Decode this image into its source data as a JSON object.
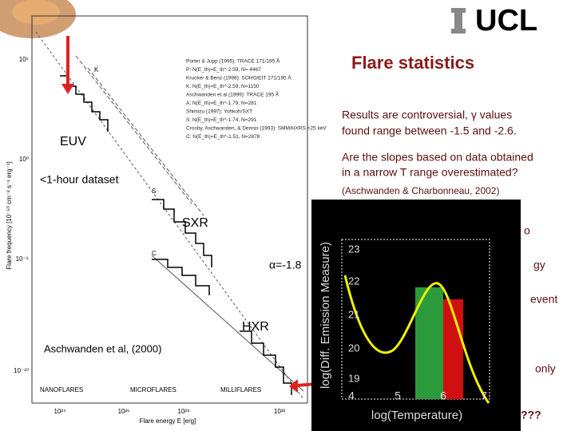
{
  "header": {
    "logo": "UCL",
    "title": "Flare statistics"
  },
  "text": {
    "claim": [
      "Results are controversial, γ values",
      "found range between -1.5 and -2.6."
    ],
    "question": [
      "Are the slopes based on data obtained",
      "in a narrow T range overestimated?"
    ],
    "reference": "(Aschwanden & Charbonneau, 2002)",
    "hidden_fragments": [
      "o",
      "gy",
      "event",
      "only",
      "???"
    ]
  },
  "left_figure": {
    "y_axis_label": "Flare frequency [10⁻⁵⁰ cm⁻² s⁻¹ erg⁻¹]",
    "x_axis_label": "Flare energy E [erg]",
    "y_ticks": [
      "10⁵",
      "10⁰",
      "10⁻⁵",
      "10⁻¹⁰"
    ],
    "x_ticks": [
      "10²⁴",
      "10²⁶",
      "10²⁸",
      "10³²"
    ],
    "legend": [
      "Porter & Jupp (1995): TRACE 171/195 Å",
      "P: N(E_th)=E_th^-2.59, N= 4467",
      "Krucker & Benz (1998): SOHO/EIT 171/195 Å",
      "K: N(E_th)=E_th^-2.59, N=1150",
      "Aschwanden et al (1999): TRACE 195 Å",
      "A: N(E_th)=E_th^-1.79, N=281",
      "Shimizu (1997): Yohkoh/SXT",
      "S: N(E_th)=E_th^-1.74, N=291",
      "Crosby, Aschwanden, & Dennis (1993): SMM/HXRS >25 keV",
      "C: N(E_th)=E_th^-1.51, N=2878"
    ],
    "curve_letters": [
      "K",
      "S",
      "C"
    ],
    "annotations": {
      "euv": "EUV",
      "dataset": "<1-hour dataset",
      "sxr": "SXR",
      "alpha": "α=-1.8",
      "hxr": "HXR",
      "source": "Aschwanden et al, (2000)"
    },
    "regimes": [
      "NANOFLARES",
      "MICROFLARES",
      "MILLIFLARES"
    ]
  },
  "inset": {
    "y_axis_label": "log(Diff. Emission Measure)",
    "x_axis_label": "log(Temperature)",
    "y_ticks": [
      "23",
      "22",
      "21",
      "20",
      "19"
    ],
    "x_ticks": [
      "4",
      "5",
      "6",
      "7"
    ]
  }
}
